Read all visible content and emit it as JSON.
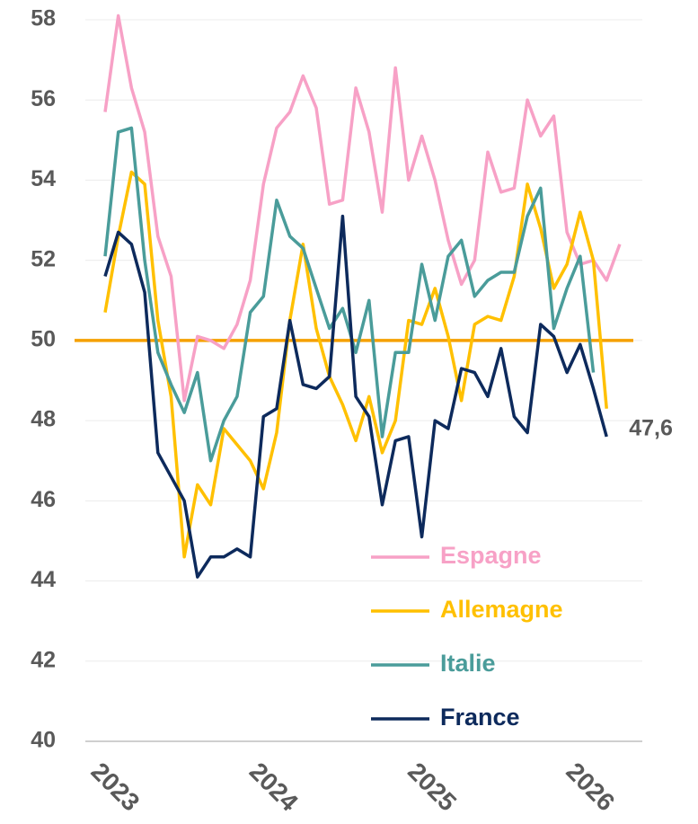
{
  "chart_data": {
    "type": "line",
    "categories": [
      "2023",
      null,
      null,
      null,
      null,
      null,
      null,
      null,
      null,
      null,
      null,
      null,
      "2024",
      null,
      null,
      null,
      null,
      null,
      null,
      null,
      null,
      null,
      null,
      null,
      "2025",
      null,
      null,
      null,
      null,
      null,
      null,
      null,
      null,
      null,
      null,
      null,
      "2026",
      null,
      null,
      null
    ],
    "series": [
      {
        "name": "Espagne",
        "color": "#f7a1c6",
        "values": [
          55.7,
          58.1,
          56.3,
          55.2,
          52.6,
          51.6,
          48.5,
          50.1,
          50.0,
          49.8,
          50.4,
          51.5,
          53.9,
          55.3,
          55.7,
          56.6,
          55.8,
          53.4,
          53.5,
          56.3,
          55.2,
          53.2,
          56.8,
          54.0,
          55.1,
          54.0,
          52.5,
          51.4,
          52.0,
          54.7,
          53.7,
          53.8,
          56.0,
          55.1,
          55.6,
          52.7,
          51.9,
          52.0,
          51.5,
          52.4
        ]
      },
      {
        "name": "Allemagne",
        "color": "#ffc000",
        "values": [
          50.7,
          52.6,
          54.2,
          53.9,
          50.5,
          48.6,
          44.6,
          46.4,
          45.9,
          47.8,
          47.4,
          47.0,
          46.3,
          47.7,
          50.5,
          52.4,
          50.3,
          49.1,
          48.4,
          47.5,
          48.6,
          47.2,
          48.0,
          50.5,
          50.4,
          51.3,
          50.1,
          48.5,
          50.4,
          50.6,
          50.5,
          51.6,
          53.9,
          52.8,
          51.3,
          51.9,
          53.2,
          52.0,
          48.3,
          null
        ]
      },
      {
        "name": "Italie",
        "color": "#4a9c9a",
        "values": [
          52.1,
          55.2,
          55.3,
          52.0,
          49.7,
          48.9,
          48.2,
          49.2,
          47.0,
          48.0,
          48.6,
          50.7,
          51.1,
          53.5,
          52.6,
          52.3,
          51.3,
          50.3,
          50.8,
          49.7,
          51.0,
          47.6,
          49.7,
          49.7,
          51.9,
          50.5,
          52.1,
          52.5,
          51.1,
          51.5,
          51.7,
          51.7,
          53.1,
          53.8,
          50.3,
          51.3,
          52.1,
          49.2,
          null,
          null
        ]
      },
      {
        "name": "France",
        "color": "#0d2a5c",
        "end_label": "47,6",
        "values": [
          51.6,
          52.7,
          52.4,
          51.2,
          47.2,
          46.6,
          46.0,
          44.1,
          44.6,
          44.6,
          44.8,
          44.6,
          48.1,
          48.3,
          50.5,
          48.9,
          48.8,
          49.1,
          53.1,
          48.6,
          48.1,
          45.9,
          47.5,
          47.6,
          45.1,
          48.0,
          47.8,
          49.3,
          49.2,
          48.6,
          49.8,
          48.1,
          47.7,
          50.4,
          50.1,
          49.2,
          49.9,
          48.8,
          47.6,
          null
        ]
      }
    ],
    "ylim": [
      40,
      58
    ],
    "yticks": [
      40,
      42,
      44,
      46,
      48,
      50,
      52,
      54,
      56,
      58
    ],
    "grid": true,
    "reference_line": {
      "value": 50,
      "color": "#f5a000"
    },
    "legend": "lower right"
  }
}
